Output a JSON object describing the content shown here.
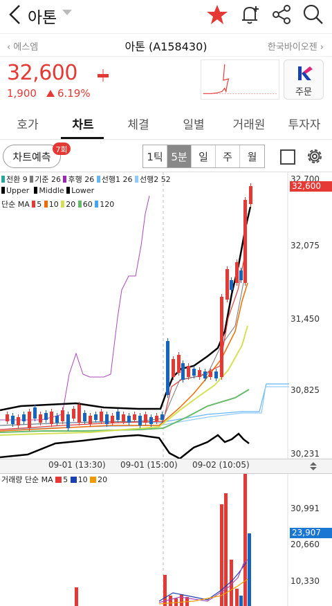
{
  "header": {
    "title": "아톤",
    "icons": [
      "back-icon",
      "star-icon",
      "bell-plus-icon",
      "share-icon",
      "search-icon"
    ]
  },
  "stock_nav": {
    "prev": "에스엠",
    "name": "아톤 (A158430)",
    "next": "한국바이오젠"
  },
  "quote": {
    "price": "32,600",
    "change": "1,900",
    "change_pct": "6.19%",
    "order_label": "주문"
  },
  "tabs": {
    "items": [
      "호가",
      "차트",
      "체결",
      "일별",
      "거래원",
      "투자자"
    ],
    "active": "차트"
  },
  "controls": {
    "predict_label": "차트예측",
    "predict_badge": "7회",
    "periods": [
      "1틱",
      "5분",
      "일",
      "주",
      "월"
    ],
    "active_period": "5분"
  },
  "colors": {
    "up": "#e53935",
    "down": "#1565c0",
    "accent": "#e53935"
  },
  "chart_data": [
    {
      "type": "line",
      "panel": "price",
      "legend_row1": [
        "전환 9",
        "기준 26",
        "후행 26",
        "선행1 26",
        "선행2 52"
      ],
      "legend_row2": [
        "Upper",
        "Middle",
        "Lower"
      ],
      "legend_row3_prefix": "단순 MA",
      "legend_row3": [
        "5",
        "10",
        "20",
        "60",
        "120"
      ],
      "y_ticks": [
        "32,700",
        "32,075",
        "31,450",
        "30,825",
        "30,231"
      ],
      "current_price_tag": "32,600",
      "x_ticks": [
        "09-01 (13:30)",
        "09-01 (15:00)",
        "09-02 (10:05)"
      ],
      "ylim": [
        30231,
        32700
      ]
    },
    {
      "type": "bar",
      "panel": "volume",
      "legend_prefix": "거래량 단순 MA",
      "legend": [
        "5",
        "10",
        "20"
      ],
      "y_ticks": [
        "30,991",
        "20,660",
        "10,330"
      ],
      "current_volume_tag": "23,907"
    }
  ]
}
